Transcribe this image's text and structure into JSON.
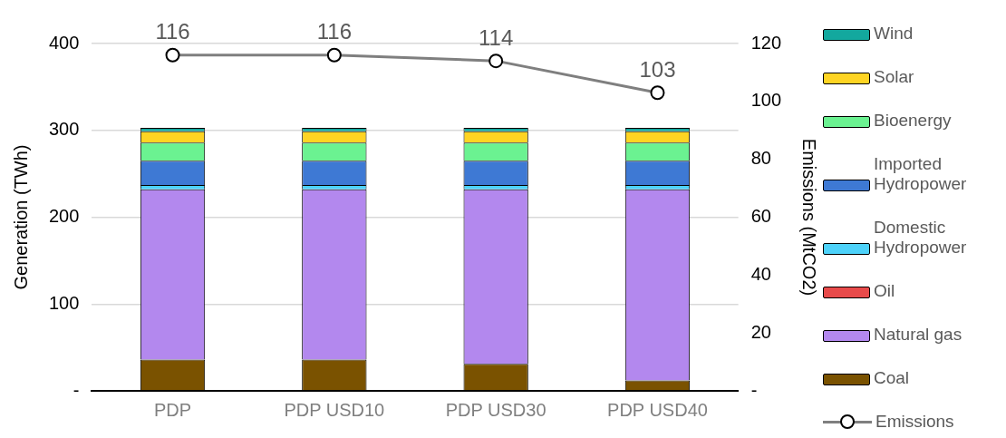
{
  "chart_data": {
    "type": "bar",
    "stacked": true,
    "categories": [
      "PDP",
      "PDP USD10",
      "PDP USD30",
      "PDP USD40"
    ],
    "ylabel": "Generation (TWh)",
    "y2label": "Emissions (MtCO2)",
    "ylim": [
      0,
      400
    ],
    "yticks": [
      {
        "value": 0,
        "label": "-"
      },
      100,
      200,
      300,
      400
    ],
    "y2lim": [
      0,
      120
    ],
    "y2ticks": [
      {
        "value": 0,
        "label": "-"
      },
      20,
      40,
      60,
      80,
      100,
      120
    ],
    "grid": "y",
    "legend": "right",
    "series": [
      {
        "name": "Coal",
        "color": "#7a5200",
        "values": [
          36,
          36,
          31,
          12
        ]
      },
      {
        "name": "Natural gas",
        "color": "#b388ee",
        "values": [
          196,
          196,
          201,
          220
        ]
      },
      {
        "name": "Oil",
        "color": "#e84a4a",
        "values": [
          0,
          0,
          0,
          0
        ]
      },
      {
        "name": "Domestic Hydropower",
        "color": "#4dd2fa",
        "values": [
          5,
          5,
          5,
          5
        ]
      },
      {
        "name": "Imported Hydropower",
        "color": "#3e79d4",
        "values": [
          28,
          28,
          28,
          28
        ]
      },
      {
        "name": "Bioenergy",
        "color": "#6bf291",
        "values": [
          21,
          21,
          21,
          21
        ]
      },
      {
        "name": "Solar",
        "color": "#fed423",
        "values": [
          13,
          13,
          13,
          13
        ]
      },
      {
        "name": "Wind",
        "color": "#13a89e",
        "values": [
          4,
          4,
          4,
          4
        ]
      },
      {
        "name": "Emissions",
        "type": "line",
        "axis": "y2",
        "color": "#7f7f7f",
        "marker": "circle",
        "data_labels": true,
        "values": [
          116,
          116,
          114,
          103
        ]
      }
    ]
  }
}
